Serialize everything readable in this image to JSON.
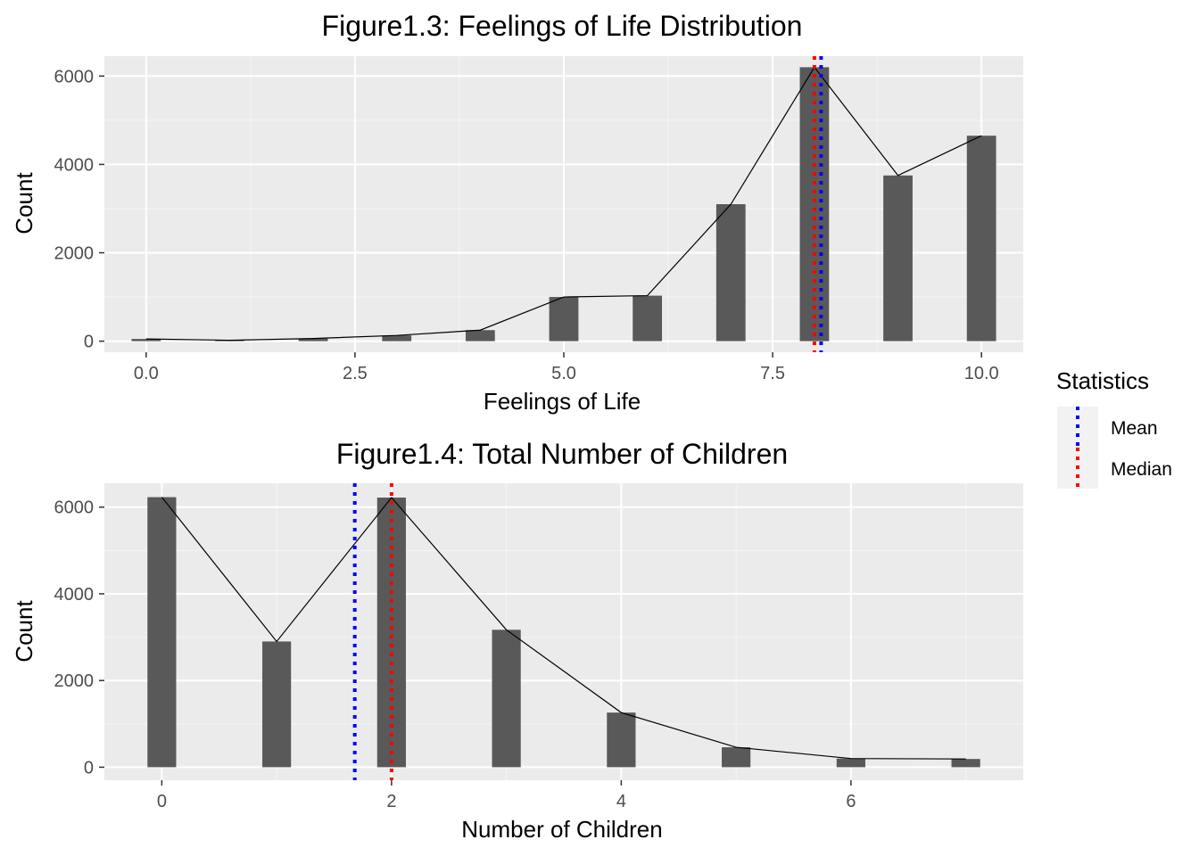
{
  "colors": {
    "panel_bg": "#ebebeb",
    "grid_major": "#ffffff",
    "bar": "#595959",
    "line": "#000000",
    "mean": "#0000ff",
    "median": "#ff0000"
  },
  "legend": {
    "title": "Statistics",
    "placement": "right",
    "items": [
      {
        "label": "Mean",
        "color": "#0000ff",
        "style": "dotted"
      },
      {
        "label": "Median",
        "color": "#ff0000",
        "style": "dotted"
      }
    ]
  },
  "chart_data": [
    {
      "type": "bar",
      "title": "Figure1.3: Feelings of Life Distribution",
      "xlabel": "Feelings of Life",
      "ylabel": "Count",
      "xlim": [
        -0.5,
        10.5
      ],
      "ylim": [
        -250,
        6450
      ],
      "xticks": [
        0,
        2.5,
        5,
        7.5,
        10
      ],
      "xtick_labels": [
        "0.0",
        "2.5",
        "5.0",
        "7.5",
        "10.0"
      ],
      "yticks": [
        0,
        2000,
        4000,
        6000
      ],
      "ytick_labels": [
        "0",
        "2000",
        "4000",
        "6000"
      ],
      "x": [
        0,
        1,
        2,
        3,
        4,
        5,
        6,
        7,
        8,
        9,
        10
      ],
      "values": [
        50,
        20,
        60,
        130,
        250,
        1000,
        1030,
        3100,
        6200,
        3750,
        4650
      ],
      "bar_width": 0.35,
      "line_overlay": true,
      "mean": 8.08,
      "median": 8,
      "grid": true
    },
    {
      "type": "bar",
      "title": "Figure1.4: Total Number of Children",
      "xlabel": "Number of Children",
      "ylabel": "Count",
      "xlim": [
        -0.5,
        7.5
      ],
      "ylim": [
        -300,
        6550
      ],
      "xticks": [
        0,
        2,
        4,
        6
      ],
      "xtick_labels": [
        "0",
        "2",
        "4",
        "6"
      ],
      "yticks": [
        0,
        2000,
        4000,
        6000
      ],
      "ytick_labels": [
        "0",
        "2000",
        "4000",
        "6000"
      ],
      "x": [
        0,
        1,
        2,
        3,
        4,
        5,
        6,
        7
      ],
      "values": [
        6230,
        2900,
        6220,
        3170,
        1260,
        460,
        200,
        190
      ],
      "bar_width": 0.25,
      "line_overlay": true,
      "mean": 1.68,
      "median": 2,
      "grid": true
    }
  ]
}
